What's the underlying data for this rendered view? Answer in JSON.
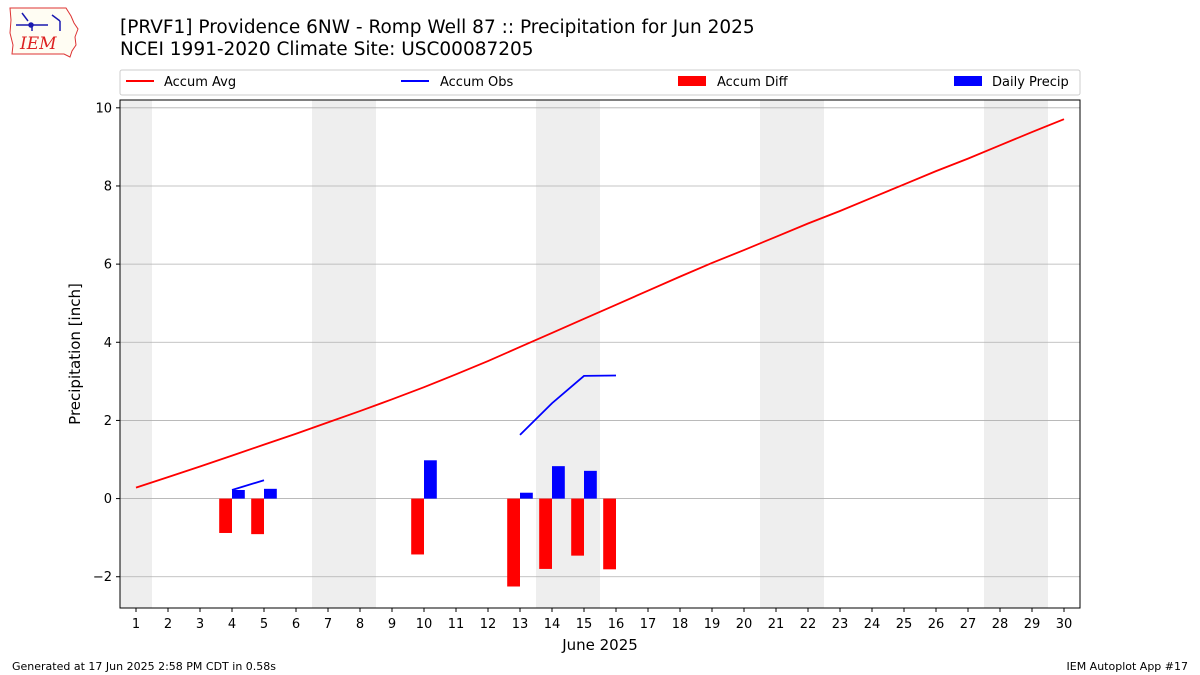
{
  "logo_text": "IEM",
  "title_line1": "[PRVF1] Providence 6NW - Romp Well 87 :: Precipitation for Jun 2025",
  "title_line2": "NCEI 1991-2020 Climate Site: USC00087205",
  "footer_left": "Generated at 17 Jun 2025 2:58 PM CDT in 0.58s",
  "footer_right": "IEM Autoplot App #17",
  "colors": {
    "accum_avg": "#ff0000",
    "accum_obs": "#0000ff",
    "accum_diff": "#ff0000",
    "daily_precip": "#0000ff",
    "weekend_band": "#eeeeee",
    "grid": "#b0b0b0"
  },
  "chart_data": {
    "type": "line",
    "xlabel": "June 2025",
    "ylabel": "Precipitation [inch]",
    "xlim": [
      0.5,
      30.5
    ],
    "ylim": [
      -2.8,
      10.2
    ],
    "x_ticks": [
      1,
      2,
      3,
      4,
      5,
      6,
      7,
      8,
      9,
      10,
      11,
      12,
      13,
      14,
      15,
      16,
      17,
      18,
      19,
      20,
      21,
      22,
      23,
      24,
      25,
      26,
      27,
      28,
      29,
      30
    ],
    "y_ticks": [
      -2,
      0,
      2,
      4,
      6,
      8,
      10
    ],
    "y_tick_labels": [
      "−2",
      "0",
      "2",
      "4",
      "6",
      "8",
      "10"
    ],
    "grid": "horizontal",
    "legend_placement": "top",
    "weekend_bands": [
      [
        0.5,
        1.5
      ],
      [
        6.5,
        8.5
      ],
      [
        13.5,
        15.5
      ],
      [
        20.5,
        22.5
      ],
      [
        27.5,
        29.5
      ]
    ],
    "legend": [
      "Accum Avg",
      "Accum Obs",
      "Accum Diff",
      "Daily Precip"
    ],
    "series": [
      {
        "name": "Accum Avg",
        "kind": "line",
        "x": [
          1,
          2,
          3,
          4,
          5,
          6,
          7,
          8,
          9,
          10,
          11,
          12,
          13,
          14,
          15,
          16,
          17,
          18,
          19,
          20,
          21,
          22,
          23,
          24,
          25,
          26,
          27,
          28,
          29,
          30
        ],
        "values": [
          0.28,
          0.55,
          0.82,
          1.1,
          1.38,
          1.66,
          1.95,
          2.24,
          2.54,
          2.85,
          3.18,
          3.52,
          3.88,
          4.24,
          4.6,
          4.96,
          5.32,
          5.68,
          6.03,
          6.36,
          6.7,
          7.04,
          7.36,
          7.7,
          8.04,
          8.38,
          8.7,
          9.04,
          9.38,
          9.71
        ]
      },
      {
        "name": "Accum Obs",
        "kind": "line",
        "segments": [
          {
            "x": [
              4,
              5
            ],
            "values": [
              0.22,
              0.47
            ]
          },
          {
            "x": [
              13,
              14,
              15,
              16
            ],
            "values": [
              1.63,
              2.44,
              3.14,
              3.15
            ]
          }
        ]
      },
      {
        "name": "Accum Diff",
        "kind": "bar",
        "x": [
          4,
          5,
          10,
          13,
          14,
          15,
          16
        ],
        "values": [
          -0.88,
          -0.91,
          -1.43,
          -2.25,
          -1.8,
          -1.46,
          -1.81
        ]
      },
      {
        "name": "Daily Precip",
        "kind": "bar",
        "x": [
          4,
          5,
          10,
          13,
          14,
          15
        ],
        "values": [
          0.22,
          0.25,
          0.98,
          0.15,
          0.83,
          0.71
        ]
      }
    ]
  }
}
